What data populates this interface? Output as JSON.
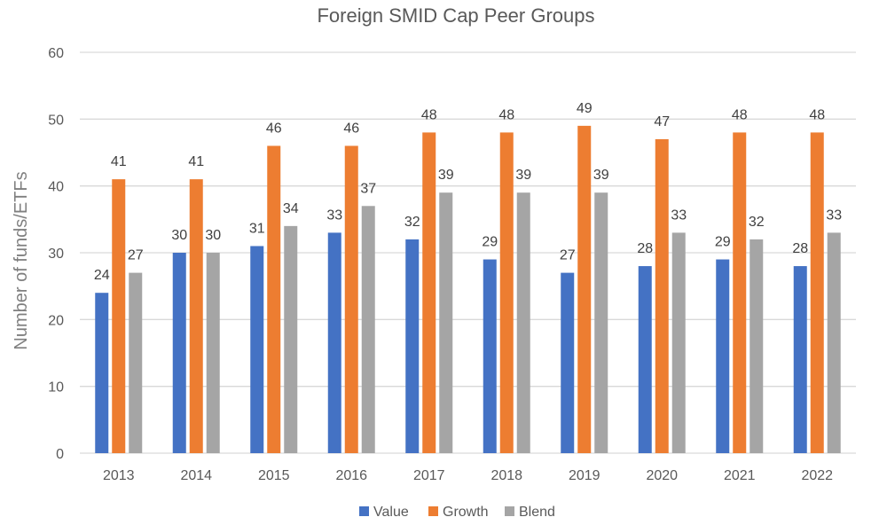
{
  "chart_data": {
    "type": "bar",
    "title": "Foreign SMID Cap Peer Groups",
    "xlabel": "",
    "ylabel": "Number of funds/ETFs",
    "ylim": [
      0,
      60
    ],
    "yticks": [
      0,
      10,
      20,
      30,
      40,
      50,
      60
    ],
    "grid": true,
    "legend_position": "bottom",
    "categories": [
      "2013",
      "2014",
      "2015",
      "2016",
      "2017",
      "2018",
      "2019",
      "2020",
      "2021",
      "2022"
    ],
    "series": [
      {
        "name": "Value",
        "color": "#4472c4",
        "values": [
          24,
          30,
          31,
          33,
          32,
          29,
          27,
          28,
          29,
          28
        ]
      },
      {
        "name": "Growth",
        "color": "#ed7d31",
        "values": [
          41,
          41,
          46,
          46,
          48,
          48,
          49,
          47,
          48,
          48
        ]
      },
      {
        "name": "Blend",
        "color": "#a5a5a5",
        "values": [
          27,
          30,
          34,
          37,
          39,
          39,
          39,
          33,
          32,
          33
        ]
      }
    ]
  }
}
